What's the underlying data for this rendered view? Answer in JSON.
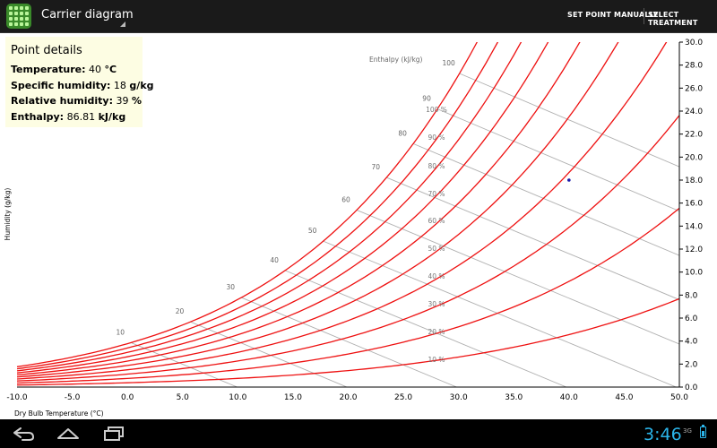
{
  "action_bar": {
    "title": "Carrier diagram",
    "buttons": [
      "SET POINT MANUALLY",
      "SELECT TREATMENT"
    ]
  },
  "details": {
    "title": "Point details",
    "rows": [
      {
        "label": "Temperature:",
        "value": "40",
        "unit": "°C"
      },
      {
        "label": "Specific humidity:",
        "value": "18",
        "unit": "g/kg"
      },
      {
        "label": "Relative humidity:",
        "value": "39",
        "unit": "%"
      },
      {
        "label": "Enthalpy:",
        "value": "86.81",
        "unit": "kJ/kg"
      }
    ]
  },
  "chart_data": {
    "type": "psychrometric",
    "xlabel": "Dry Bulb Temperature (°C)",
    "ylabel": "Humidity (g/kg)",
    "xlim": [
      -10,
      50
    ],
    "ylim": [
      0,
      30
    ],
    "x_ticks": [
      "-10.0",
      "-5.0",
      "0.0",
      "5.0",
      "10.0",
      "15.0",
      "20.0",
      "25.0",
      "30.0",
      "35.0",
      "40.0",
      "45.0",
      "50.0"
    ],
    "y_ticks": [
      "0.0",
      "2.0",
      "4.0",
      "6.0",
      "8.0",
      "10.0",
      "12.0",
      "14.0",
      "16.0",
      "18.0",
      "20.0",
      "22.0",
      "24.0",
      "26.0",
      "28.0",
      "30.0"
    ],
    "rh_curves": [
      10,
      20,
      30,
      40,
      50,
      60,
      70,
      80,
      90,
      100
    ],
    "rh_labels": [
      "10 %",
      "20 %",
      "30 %",
      "40 %",
      "50 %",
      "60 %",
      "70 %",
      "80 %",
      "90 %",
      "100 %"
    ],
    "enthalpy_lines": [
      10,
      20,
      30,
      40,
      50,
      60,
      70,
      80,
      90,
      100
    ],
    "enthalpy_labels": [
      "10",
      "20",
      "30",
      "40",
      "50",
      "60",
      "70",
      "80",
      "90",
      "100"
    ],
    "enthalpy_title": "Enthalpy (kJ/kg)",
    "point": {
      "x": 40,
      "y": 18
    },
    "colors": {
      "rh": "#ee1111",
      "enthalpy": "#b0b0b0",
      "point": "#1a1aaa"
    }
  },
  "status": {
    "time": "3:46",
    "signal": "3G"
  },
  "nav": [
    "back-icon",
    "home-icon",
    "recent-apps-icon"
  ]
}
